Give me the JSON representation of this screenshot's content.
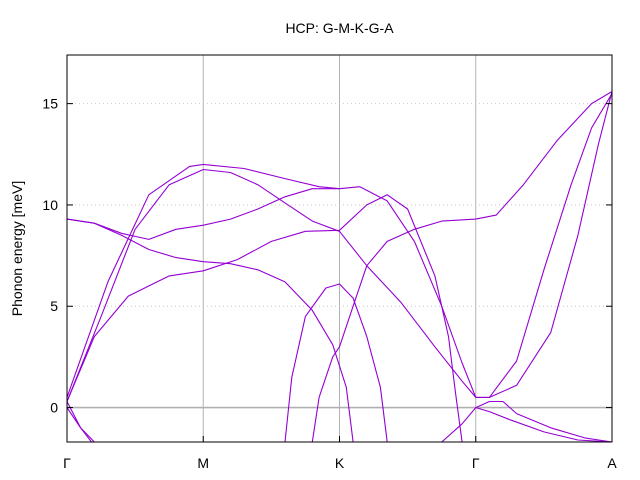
{
  "chart_data": {
    "type": "line",
    "title": "HCP: G-M-K-G-A",
    "ylabel": "Phonon energy [meV]",
    "xlabel": "",
    "x_ticks": [
      {
        "label": "Γ",
        "x": 0
      },
      {
        "label": "M",
        "x": 1
      },
      {
        "label": "K",
        "x": 2
      },
      {
        "label": "Γ",
        "x": 3
      },
      {
        "label": "A",
        "x": 4
      }
    ],
    "xlim": [
      0,
      4
    ],
    "ylim": [
      -1.7,
      17.4
    ],
    "y_ticks": [
      0,
      5,
      10,
      15
    ],
    "grid": {
      "vertical_at_ticks": true,
      "horizontal_dotted": true
    },
    "zero_line": true,
    "line_color": "#9400d3",
    "zero_line_color": "#b0b0b0",
    "series": [
      {
        "values": [
          [
            0,
            0.5
          ],
          [
            0.3,
            6.2
          ],
          [
            0.6,
            10.5
          ],
          [
            0.9,
            11.9
          ],
          [
            1.0,
            12.0
          ],
          [
            1.3,
            11.8
          ],
          [
            1.6,
            11.3
          ],
          [
            1.85,
            10.9
          ],
          [
            2.0,
            10.8
          ],
          [
            2.15,
            10.9
          ],
          [
            2.35,
            10.2
          ],
          [
            2.55,
            8.2
          ],
          [
            2.75,
            5.0
          ],
          [
            2.9,
            2.2
          ],
          [
            3.0,
            0.5
          ],
          [
            3.1,
            0.5
          ],
          [
            3.3,
            2.3
          ],
          [
            3.5,
            6.8
          ],
          [
            3.7,
            11.0
          ],
          [
            3.85,
            13.8
          ],
          [
            4.0,
            15.5
          ]
        ]
      },
      {
        "values": [
          [
            0,
            0.3
          ],
          [
            0.25,
            4.5
          ],
          [
            0.5,
            8.8
          ],
          [
            0.75,
            11.0
          ],
          [
            1.0,
            11.75
          ],
          [
            1.2,
            11.6
          ],
          [
            1.4,
            11.0
          ],
          [
            1.6,
            10.1
          ],
          [
            1.8,
            9.2
          ],
          [
            2.0,
            8.7
          ],
          [
            2.2,
            7.0
          ],
          [
            2.45,
            5.2
          ],
          [
            2.7,
            3.0
          ],
          [
            2.9,
            1.3
          ],
          [
            3.0,
            0.5
          ],
          [
            3.1,
            0.5
          ],
          [
            3.3,
            1.1
          ],
          [
            3.55,
            3.7
          ],
          [
            3.75,
            8.5
          ],
          [
            3.9,
            13.0
          ],
          [
            4.0,
            15.6
          ]
        ]
      },
      {
        "values": [
          [
            0,
            9.3
          ],
          [
            0.2,
            9.1
          ],
          [
            0.4,
            8.5
          ],
          [
            0.6,
            7.8
          ],
          [
            0.8,
            7.4
          ],
          [
            1.0,
            7.2
          ],
          [
            1.2,
            7.1
          ],
          [
            1.4,
            6.8
          ],
          [
            1.6,
            6.2
          ],
          [
            1.8,
            4.8
          ],
          [
            1.95,
            3.1
          ],
          [
            2.05,
            1.0
          ],
          [
            2.1,
            -1.7
          ]
        ]
      },
      {
        "values": [
          [
            0,
            9.3
          ],
          [
            0.2,
            9.1
          ],
          [
            0.4,
            8.6
          ],
          [
            0.6,
            8.3
          ],
          [
            0.8,
            8.8
          ],
          [
            1.0,
            9.0
          ],
          [
            1.2,
            9.3
          ],
          [
            1.4,
            9.8
          ],
          [
            1.6,
            10.4
          ],
          [
            1.8,
            10.8
          ],
          [
            2.0,
            10.8
          ]
        ]
      },
      {
        "values": [
          [
            0,
            0.3
          ],
          [
            0.2,
            3.5
          ],
          [
            0.45,
            5.5
          ],
          [
            0.75,
            6.5
          ],
          [
            1.0,
            6.75
          ],
          [
            1.25,
            7.3
          ],
          [
            1.5,
            8.2
          ],
          [
            1.75,
            8.7
          ],
          [
            2.0,
            8.75
          ],
          [
            2.2,
            10.0
          ],
          [
            2.35,
            10.5
          ],
          [
            2.5,
            9.8
          ],
          [
            2.7,
            6.5
          ],
          [
            2.8,
            3.5
          ],
          [
            2.85,
            0.8
          ],
          [
            2.9,
            -1.7
          ]
        ]
      },
      {
        "values": [
          [
            0,
            0.3
          ],
          [
            0.1,
            -1.0
          ],
          [
            0.2,
            -1.7
          ]
        ]
      },
      {
        "values": [
          [
            0,
            0.0
          ],
          [
            0.1,
            -1.0
          ],
          [
            0.18,
            -1.7
          ]
        ]
      },
      {
        "values": [
          [
            1.6,
            -1.7
          ],
          [
            1.65,
            1.5
          ],
          [
            1.75,
            4.5
          ],
          [
            1.9,
            5.9
          ],
          [
            2.0,
            6.1
          ],
          [
            2.1,
            5.4
          ],
          [
            2.2,
            3.5
          ],
          [
            2.3,
            1.0
          ],
          [
            2.35,
            -1.7
          ]
        ]
      },
      {
        "values": [
          [
            1.8,
            -1.7
          ],
          [
            1.85,
            0.5
          ],
          [
            1.95,
            2.5
          ],
          [
            2.0,
            3.0
          ],
          [
            2.1,
            5.0
          ],
          [
            2.2,
            7.0
          ],
          [
            2.35,
            8.2
          ],
          [
            2.55,
            8.8
          ],
          [
            2.75,
            9.2
          ],
          [
            3.0,
            9.3
          ],
          [
            3.15,
            9.5
          ],
          [
            3.35,
            11.0
          ],
          [
            3.6,
            13.2
          ],
          [
            3.85,
            15.0
          ],
          [
            4.0,
            15.6
          ]
        ]
      },
      {
        "values": [
          [
            2.75,
            -1.7
          ],
          [
            2.9,
            -0.8
          ],
          [
            3.0,
            0.0
          ],
          [
            3.1,
            -0.2
          ],
          [
            3.25,
            -0.6
          ],
          [
            3.5,
            -1.2
          ],
          [
            3.75,
            -1.6
          ],
          [
            4.0,
            -1.7
          ]
        ]
      },
      {
        "values": [
          [
            3.0,
            0.0
          ],
          [
            3.1,
            0.3
          ],
          [
            3.2,
            0.3
          ],
          [
            3.3,
            -0.3
          ],
          [
            3.55,
            -1.0
          ],
          [
            3.8,
            -1.5
          ],
          [
            4.0,
            -1.7
          ]
        ]
      }
    ]
  }
}
